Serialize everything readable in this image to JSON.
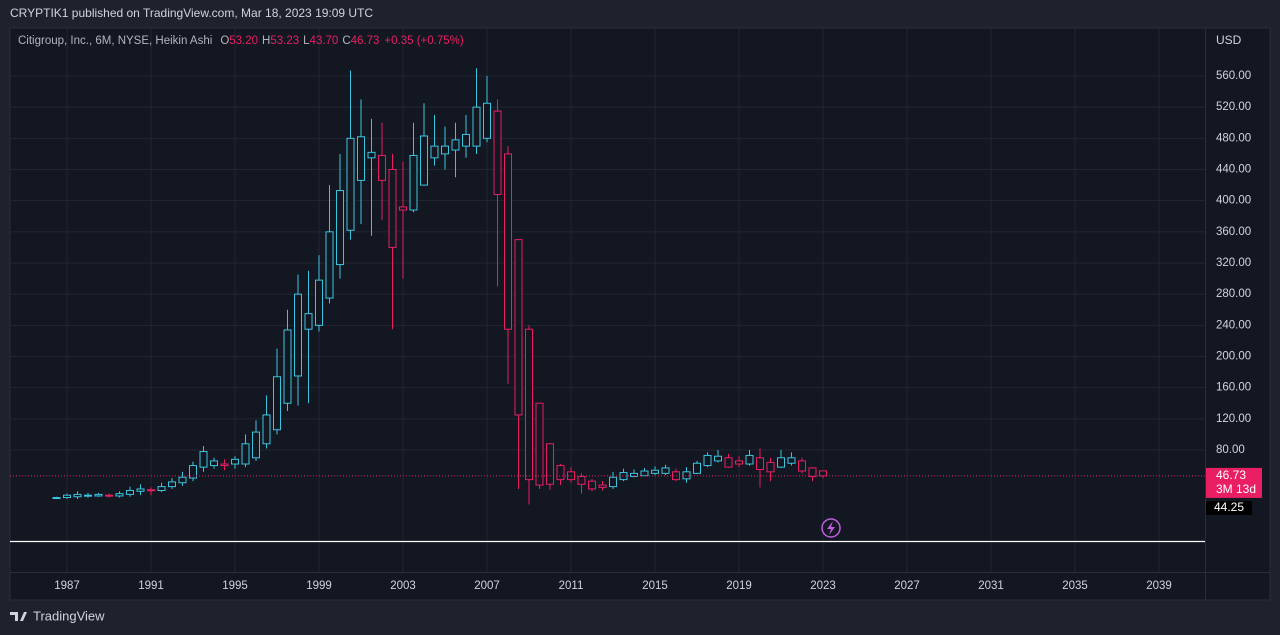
{
  "header": {
    "published": "CRYPTIK1 published on TradingView.com, Mar 18, 2023 19:09 UTC"
  },
  "footer": {
    "brand": "TradingView"
  },
  "chart_data": {
    "type": "candlestick",
    "legend": {
      "name": "Citigroup, Inc., 6M, NYSE, Heikin Ashi",
      "items": [
        {
          "key": "O",
          "value": "53.20"
        },
        {
          "key": "H",
          "value": "53.23"
        },
        {
          "key": "L",
          "value": "43.70"
        },
        {
          "key": "C",
          "value": "46.73"
        }
      ],
      "change": "+0.35 (+0.75%)"
    },
    "currency": "USD",
    "countdown": "3M 13d",
    "extra_price_label": "44.25",
    "up_color": "#3bc4de",
    "down_color": "#e91e63",
    "grid": true,
    "x": [
      1986.5,
      1987,
      1987.5,
      1988,
      1988.5,
      1989,
      1989.5,
      1990,
      1990.5,
      1991,
      1991.5,
      1992,
      1992.5,
      1993,
      1993.5,
      1994,
      1994.5,
      1995,
      1995.5,
      1996,
      1996.5,
      1997,
      1997.5,
      1998,
      1998.5,
      1999,
      1999.5,
      2000,
      2000.5,
      2001,
      2001.5,
      2002,
      2002.5,
      2003,
      2003.5,
      2004,
      2004.5,
      2005,
      2005.5,
      2006,
      2006.5,
      2007,
      2007.5,
      2008,
      2008.5,
      2009,
      2009.5,
      2010,
      2010.5,
      2011,
      2011.5,
      2012,
      2012.5,
      2013,
      2013.5,
      2014,
      2014.5,
      2015,
      2015.5,
      2016,
      2016.5,
      2017,
      2017.5,
      2018,
      2018.5,
      2019,
      2019.5,
      2020,
      2020.5,
      2021,
      2021.5,
      2022,
      2022.5,
      2023
    ],
    "open": [
      18,
      19,
      20,
      21,
      21,
      22,
      21,
      23,
      27,
      29,
      28,
      33,
      38,
      44,
      58,
      60,
      62,
      62,
      62,
      70,
      88,
      106,
      140,
      175,
      235,
      240,
      275,
      318,
      362,
      426,
      455,
      458,
      440,
      392,
      388,
      420,
      455,
      460,
      465,
      470,
      470,
      480,
      515,
      460,
      350,
      235,
      140,
      88,
      60,
      52,
      46,
      40,
      35,
      33,
      42,
      46,
      47,
      50,
      50,
      52,
      43,
      50,
      60,
      66,
      70,
      66,
      62,
      70,
      64,
      58,
      63,
      66,
      57,
      53.2
    ],
    "high": [
      20,
      24,
      27,
      25,
      25,
      24,
      27,
      33,
      36,
      32,
      38,
      44,
      52,
      65,
      85,
      70,
      68,
      72,
      100,
      118,
      150,
      210,
      260,
      305,
      310,
      330,
      420,
      460,
      567,
      530,
      505,
      500,
      460,
      450,
      500,
      525,
      510,
      495,
      500,
      510,
      570,
      560,
      530,
      470,
      350,
      240,
      140,
      88,
      62,
      58,
      50,
      43,
      40,
      52,
      56,
      55,
      57,
      59,
      61,
      56,
      58,
      66,
      77,
      80,
      75,
      72,
      80,
      82,
      70,
      80,
      77,
      70,
      58,
      53.23
    ],
    "low": [
      17,
      17,
      17,
      19,
      20,
      19,
      19,
      20,
      22,
      22,
      26,
      30,
      34,
      40,
      52,
      56,
      54,
      56,
      58,
      66,
      82,
      100,
      130,
      137,
      140,
      232,
      268,
      300,
      350,
      370,
      355,
      375,
      235,
      300,
      385,
      420,
      445,
      440,
      430,
      455,
      460,
      475,
      290,
      165,
      30,
      10,
      30,
      29,
      35,
      38,
      24,
      27,
      28,
      30,
      40,
      45,
      47,
      48,
      48,
      40,
      38,
      49,
      58,
      64,
      57,
      58,
      60,
      32,
      40,
      57,
      60,
      50,
      40,
      43.7
    ],
    "close": [
      19,
      22,
      23,
      22,
      23,
      21,
      24,
      28,
      30,
      28,
      33,
      39,
      45,
      60,
      78,
      66,
      60,
      68,
      88,
      103,
      125,
      174,
      234,
      280,
      255,
      298,
      360,
      413,
      480,
      482,
      462,
      426,
      340,
      388,
      458,
      483,
      470,
      470,
      478,
      485,
      520,
      525,
      408,
      235,
      125,
      42,
      35,
      36,
      42,
      42,
      36,
      30,
      32,
      45,
      51,
      50,
      53,
      54,
      57,
      42,
      52,
      63,
      73,
      72,
      58,
      62,
      73,
      55,
      52,
      70,
      70,
      53,
      46,
      46.73
    ],
    "xlim": [
      1984.2857,
      2041.1905
    ],
    "xticks": [
      1987,
      1991,
      1995,
      1999,
      2003,
      2007,
      2011,
      2015,
      2019,
      2023,
      2027,
      2031,
      2035,
      2039
    ],
    "ylim": [
      -36.8,
      621.6
    ],
    "yticks": [
      {
        "value": 80,
        "label": "80.00"
      },
      {
        "value": 120,
        "label": "120.00"
      },
      {
        "value": 160,
        "label": "160.00"
      },
      {
        "value": 200,
        "label": "200.00"
      },
      {
        "value": 240,
        "label": "240.00"
      },
      {
        "value": 280,
        "label": "280.00"
      },
      {
        "value": 320,
        "label": "320.00"
      },
      {
        "value": 360,
        "label": "360.00"
      },
      {
        "value": 400,
        "label": "400.00"
      },
      {
        "value": 440,
        "label": "440.00"
      },
      {
        "value": 480,
        "label": "480.00"
      },
      {
        "value": 520,
        "label": "520.00"
      },
      {
        "value": 560,
        "label": "560.00"
      }
    ]
  }
}
